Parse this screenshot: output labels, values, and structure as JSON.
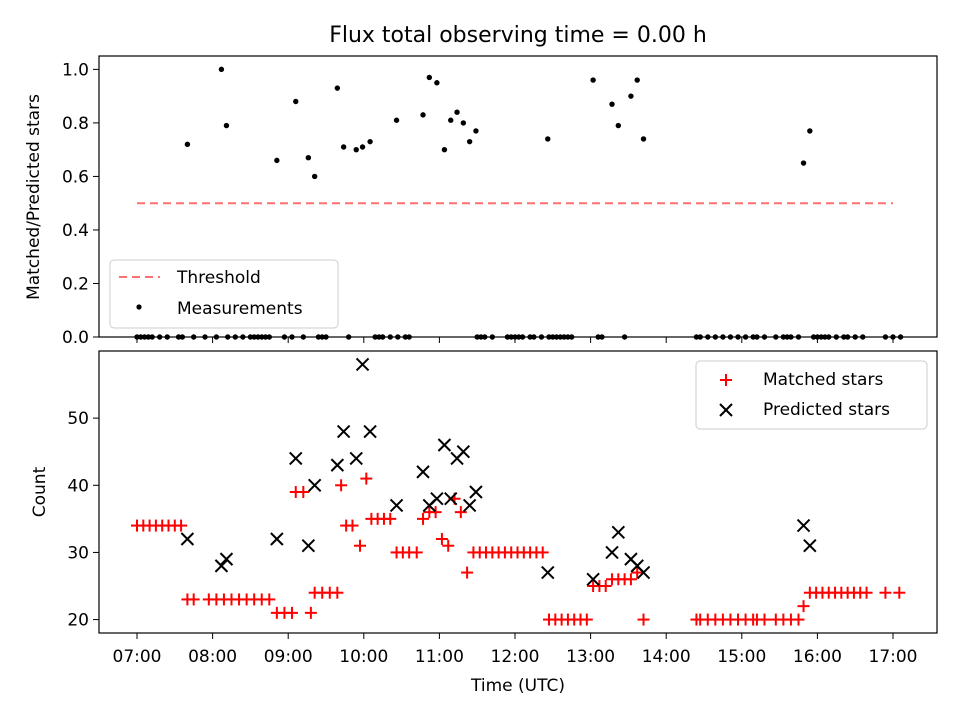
{
  "chart_data": [
    {
      "type": "scatter",
      "title": "Flux total observing time = 0.00 h",
      "xlabel": "",
      "ylabel": "Matched/Predicted stars",
      "xlim": [
        "06:30",
        "17:35"
      ],
      "ylim": [
        0,
        1.05
      ],
      "y_ticks": [
        "0.0",
        "0.2",
        "0.4",
        "0.6",
        "0.8",
        "1.0"
      ],
      "x_tick_labels_shown": false,
      "legend_position": "lower-left",
      "series": [
        {
          "name": "Threshold",
          "style": "dashed-line",
          "color": "#ff7070",
          "points": [
            [
              "07:00",
              0.5
            ],
            [
              "17:00",
              0.5
            ]
          ]
        },
        {
          "name": "Measurements",
          "style": "dot",
          "color": "#000000",
          "points": [
            [
              "07:00",
              0
            ],
            [
              "07:03",
              0
            ],
            [
              "07:06",
              0
            ],
            [
              "07:09",
              0
            ],
            [
              "07:12",
              0
            ],
            [
              "07:18",
              0
            ],
            [
              "07:24",
              0
            ],
            [
              "07:33",
              0
            ],
            [
              "07:36",
              0
            ],
            [
              "07:45",
              0
            ],
            [
              "07:54",
              0
            ],
            [
              "08:03",
              0
            ],
            [
              "08:12",
              0
            ],
            [
              "08:18",
              0
            ],
            [
              "08:24",
              0
            ],
            [
              "08:30",
              0
            ],
            [
              "08:33",
              0
            ],
            [
              "08:36",
              0
            ],
            [
              "08:39",
              0
            ],
            [
              "08:42",
              0
            ],
            [
              "08:45",
              0
            ],
            [
              "08:57",
              0
            ],
            [
              "09:03",
              0
            ],
            [
              "09:12",
              0
            ],
            [
              "09:24",
              0
            ],
            [
              "09:27",
              0
            ],
            [
              "09:30",
              0
            ],
            [
              "09:48",
              0
            ],
            [
              "10:09",
              0
            ],
            [
              "10:12",
              0
            ],
            [
              "10:15",
              0
            ],
            [
              "10:21",
              0
            ],
            [
              "10:27",
              0
            ],
            [
              "10:33",
              0
            ],
            [
              "10:36",
              0
            ],
            [
              "11:30",
              0
            ],
            [
              "11:33",
              0
            ],
            [
              "11:36",
              0
            ],
            [
              "11:42",
              0
            ],
            [
              "11:54",
              0
            ],
            [
              "11:57",
              0
            ],
            [
              "12:00",
              0
            ],
            [
              "12:03",
              0
            ],
            [
              "12:06",
              0
            ],
            [
              "12:12",
              0
            ],
            [
              "12:15",
              0
            ],
            [
              "12:21",
              0
            ],
            [
              "12:27",
              0
            ],
            [
              "12:30",
              0
            ],
            [
              "12:33",
              0
            ],
            [
              "12:36",
              0
            ],
            [
              "12:39",
              0
            ],
            [
              "12:42",
              0
            ],
            [
              "12:45",
              0
            ],
            [
              "13:06",
              0
            ],
            [
              "13:09",
              0
            ],
            [
              "13:27",
              0
            ],
            [
              "14:24",
              0
            ],
            [
              "14:27",
              0
            ],
            [
              "14:33",
              0
            ],
            [
              "14:39",
              0
            ],
            [
              "14:45",
              0
            ],
            [
              "14:51",
              0
            ],
            [
              "14:57",
              0
            ],
            [
              "15:03",
              0
            ],
            [
              "15:09",
              0
            ],
            [
              "15:12",
              0
            ],
            [
              "15:18",
              0
            ],
            [
              "15:27",
              0
            ],
            [
              "15:33",
              0
            ],
            [
              "15:36",
              0
            ],
            [
              "15:39",
              0
            ],
            [
              "15:45",
              0
            ],
            [
              "15:57",
              0
            ],
            [
              "16:00",
              0
            ],
            [
              "16:03",
              0
            ],
            [
              "16:06",
              0
            ],
            [
              "16:09",
              0
            ],
            [
              "16:15",
              0
            ],
            [
              "16:21",
              0
            ],
            [
              "16:24",
              0
            ],
            [
              "16:30",
              0
            ],
            [
              "16:36",
              0
            ],
            [
              "16:54",
              0
            ],
            [
              "17:00",
              0
            ],
            [
              "17:06",
              0
            ],
            [
              "07:40",
              0.72
            ],
            [
              "08:07",
              1.0
            ],
            [
              "08:11",
              0.79
            ],
            [
              "08:51",
              0.66
            ],
            [
              "09:06",
              0.88
            ],
            [
              "09:16",
              0.67
            ],
            [
              "09:21",
              0.6
            ],
            [
              "09:39",
              0.93
            ],
            [
              "09:44",
              0.71
            ],
            [
              "09:54",
              0.7
            ],
            [
              "09:59",
              0.71
            ],
            [
              "10:05",
              0.73
            ],
            [
              "10:26",
              0.81
            ],
            [
              "10:47",
              0.83
            ],
            [
              "10:52",
              0.97
            ],
            [
              "10:58",
              0.95
            ],
            [
              "11:04",
              0.7
            ],
            [
              "11:09",
              0.81
            ],
            [
              "11:14",
              0.84
            ],
            [
              "11:19",
              0.8
            ],
            [
              "11:24",
              0.73
            ],
            [
              "11:29",
              0.77
            ],
            [
              "12:26",
              0.74
            ],
            [
              "13:02",
              0.96
            ],
            [
              "13:17",
              0.87
            ],
            [
              "13:22",
              0.79
            ],
            [
              "13:32",
              0.9
            ],
            [
              "13:37",
              0.96
            ],
            [
              "13:42",
              0.74
            ],
            [
              "15:49",
              0.65
            ],
            [
              "15:54",
              0.77
            ]
          ]
        }
      ]
    },
    {
      "type": "scatter",
      "title": "",
      "xlabel": "Time (UTC)",
      "ylabel": "Count",
      "xlim": [
        "06:30",
        "17:35"
      ],
      "ylim": [
        18,
        60
      ],
      "y_ticks": [
        "20",
        "30",
        "40",
        "50"
      ],
      "x_ticks": [
        "07:00",
        "08:00",
        "09:00",
        "10:00",
        "11:00",
        "12:00",
        "13:00",
        "14:00",
        "15:00",
        "16:00",
        "17:00"
      ],
      "legend_position": "upper-right",
      "series": [
        {
          "name": "Matched stars",
          "marker": "plus",
          "color": "#ff0000",
          "points": [
            [
              "07:00",
              34
            ],
            [
              "07:05",
              34
            ],
            [
              "07:10",
              34
            ],
            [
              "07:15",
              34
            ],
            [
              "07:20",
              34
            ],
            [
              "07:25",
              34
            ],
            [
              "07:30",
              34
            ],
            [
              "07:35",
              34
            ],
            [
              "07:40",
              23
            ],
            [
              "07:45",
              23
            ],
            [
              "07:57",
              23
            ],
            [
              "08:03",
              23
            ],
            [
              "08:09",
              23
            ],
            [
              "08:15",
              23
            ],
            [
              "08:21",
              23
            ],
            [
              "08:27",
              23
            ],
            [
              "08:33",
              23
            ],
            [
              "08:39",
              23
            ],
            [
              "08:45",
              23
            ],
            [
              "08:51",
              21
            ],
            [
              "08:57",
              21
            ],
            [
              "09:03",
              21
            ],
            [
              "09:06",
              39
            ],
            [
              "09:12",
              39
            ],
            [
              "09:18",
              21
            ],
            [
              "09:21",
              24
            ],
            [
              "09:27",
              24
            ],
            [
              "09:33",
              24
            ],
            [
              "09:39",
              24
            ],
            [
              "09:42",
              40
            ],
            [
              "09:46",
              34
            ],
            [
              "09:51",
              34
            ],
            [
              "09:57",
              31
            ],
            [
              "10:02",
              41
            ],
            [
              "10:06",
              35
            ],
            [
              "10:11",
              35
            ],
            [
              "10:16",
              35
            ],
            [
              "10:21",
              35
            ],
            [
              "10:26",
              30
            ],
            [
              "10:31",
              30
            ],
            [
              "10:36",
              30
            ],
            [
              "10:42",
              30
            ],
            [
              "10:47",
              35
            ],
            [
              "10:52",
              36
            ],
            [
              "10:57",
              36
            ],
            [
              "11:02",
              32
            ],
            [
              "11:07",
              31
            ],
            [
              "11:12",
              38
            ],
            [
              "11:17",
              36
            ],
            [
              "11:22",
              27
            ],
            [
              "11:27",
              30
            ],
            [
              "11:32",
              30
            ],
            [
              "11:37",
              30
            ],
            [
              "11:42",
              30
            ],
            [
              "11:47",
              30
            ],
            [
              "11:52",
              30
            ],
            [
              "11:57",
              30
            ],
            [
              "12:02",
              30
            ],
            [
              "12:07",
              30
            ],
            [
              "12:12",
              30
            ],
            [
              "12:17",
              30
            ],
            [
              "12:22",
              30
            ],
            [
              "12:27",
              20
            ],
            [
              "12:32",
              20
            ],
            [
              "12:37",
              20
            ],
            [
              "12:42",
              20
            ],
            [
              "12:47",
              20
            ],
            [
              "12:52",
              20
            ],
            [
              "12:57",
              20
            ],
            [
              "13:02",
              25
            ],
            [
              "13:07",
              25
            ],
            [
              "13:12",
              25
            ],
            [
              "13:17",
              26
            ],
            [
              "13:22",
              26
            ],
            [
              "13:27",
              26
            ],
            [
              "13:32",
              26
            ],
            [
              "13:37",
              27
            ],
            [
              "13:42",
              20
            ],
            [
              "14:24",
              20
            ],
            [
              "14:27",
              20
            ],
            [
              "14:33",
              20
            ],
            [
              "14:39",
              20
            ],
            [
              "14:45",
              20
            ],
            [
              "14:51",
              20
            ],
            [
              "14:57",
              20
            ],
            [
              "15:03",
              20
            ],
            [
              "15:09",
              20
            ],
            [
              "15:12",
              20
            ],
            [
              "15:18",
              20
            ],
            [
              "15:27",
              20
            ],
            [
              "15:33",
              20
            ],
            [
              "15:39",
              20
            ],
            [
              "15:45",
              20
            ],
            [
              "15:49",
              22
            ],
            [
              "15:54",
              24
            ],
            [
              "15:59",
              24
            ],
            [
              "16:04",
              24
            ],
            [
              "16:09",
              24
            ],
            [
              "16:14",
              24
            ],
            [
              "16:19",
              24
            ],
            [
              "16:24",
              24
            ],
            [
              "16:29",
              24
            ],
            [
              "16:34",
              24
            ],
            [
              "16:39",
              24
            ],
            [
              "16:54",
              24
            ],
            [
              "17:05",
              24
            ]
          ]
        },
        {
          "name": "Predicted stars",
          "marker": "x",
          "color": "#000000",
          "points": [
            [
              "07:40",
              32
            ],
            [
              "08:07",
              28
            ],
            [
              "08:11",
              29
            ],
            [
              "08:51",
              32
            ],
            [
              "09:06",
              44
            ],
            [
              "09:16",
              31
            ],
            [
              "09:21",
              40
            ],
            [
              "09:39",
              43
            ],
            [
              "09:44",
              48
            ],
            [
              "09:54",
              44
            ],
            [
              "09:59",
              58
            ],
            [
              "10:05",
              48
            ],
            [
              "10:26",
              37
            ],
            [
              "10:47",
              42
            ],
            [
              "10:52",
              37
            ],
            [
              "10:58",
              38
            ],
            [
              "11:04",
              46
            ],
            [
              "11:09",
              38
            ],
            [
              "11:14",
              44
            ],
            [
              "11:19",
              45
            ],
            [
              "11:24",
              37
            ],
            [
              "11:29",
              39
            ],
            [
              "12:26",
              27
            ],
            [
              "13:02",
              26
            ],
            [
              "13:17",
              30
            ],
            [
              "13:22",
              33
            ],
            [
              "13:32",
              29
            ],
            [
              "13:37",
              28
            ],
            [
              "13:42",
              27
            ],
            [
              "15:49",
              34
            ],
            [
              "15:54",
              31
            ]
          ]
        }
      ]
    }
  ]
}
